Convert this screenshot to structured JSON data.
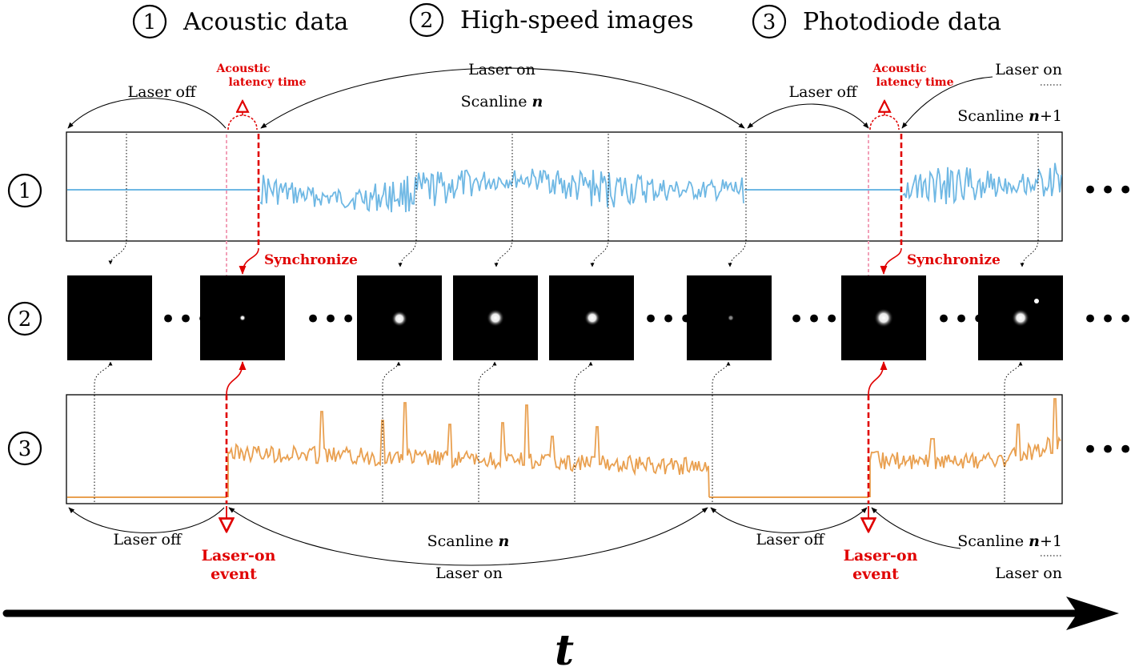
{
  "headers": {
    "h1_num": "1",
    "h1_label": "Acoustic data",
    "h2_num": "2",
    "h2_label": "High-speed images",
    "h3_num": "3",
    "h3_label": "Photodiode data"
  },
  "rows": {
    "r1": "1",
    "r2": "2",
    "r3": "3"
  },
  "top": {
    "laser_off_1": "Laser off",
    "laser_on_1": "Laser on",
    "scanline_n_prefix": "Scanline ",
    "scanline_n_var": "n",
    "laser_off_2": "Laser off",
    "laser_on_2": "Laser on",
    "scanline_n1_prefix": "Scanline ",
    "scanline_n1_var": "n",
    "scanline_n1_suffix": "+1",
    "acoustic_latency_1a": "Acoustic",
    "acoustic_latency_1b": "latency time",
    "acoustic_latency_2a": "Acoustic",
    "acoustic_latency_2b": "latency time",
    "synchronize_1": "Synchronize",
    "synchronize_2": "Synchronize"
  },
  "bottom": {
    "laser_off_1": "Laser off",
    "scanline_n_prefix": "Scanline ",
    "scanline_n_var": "n",
    "laser_on_1": "Laser on",
    "laser_off_2": "Laser off",
    "scanline_n1_prefix": "Scanline ",
    "scanline_n1_var": "n",
    "scanline_n1_suffix": "+1",
    "laser_on_2": "Laser on",
    "event_1a": "Laser-on",
    "event_1b": "event",
    "event_2a": "Laser-on",
    "event_2b": "event"
  },
  "ellipsis": "•••",
  "time_axis_label": "t",
  "colors": {
    "acoustic": "#6fb8e4",
    "photodiode": "#e9a050",
    "annotation": "#e00000",
    "latency_band": "#f2a0b8"
  }
}
